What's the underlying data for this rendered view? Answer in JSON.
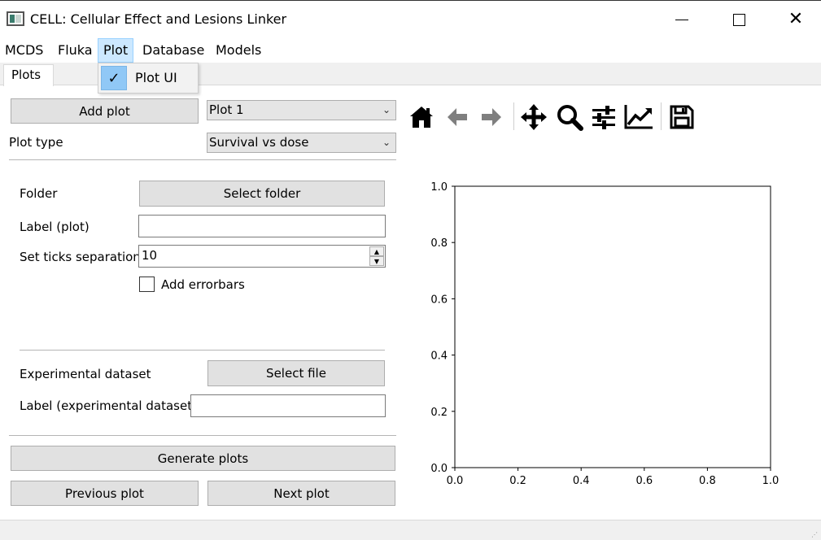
{
  "window": {
    "title": "CELL: Cellular Effect and Lesions Linker",
    "close_glyph": "✕"
  },
  "menubar": {
    "items": [
      "MCDS",
      "Fluka",
      "Plot",
      "Database",
      "Models"
    ],
    "active": "Plot"
  },
  "plot_menu": {
    "items": [
      {
        "label": "Plot UI",
        "checked": true,
        "check_glyph": "✓"
      }
    ]
  },
  "tabs": [
    "Plots"
  ],
  "form": {
    "add_plot_label": "Add plot",
    "plot_select_value": "Plot 1",
    "plot_type_label": "Plot type",
    "plot_type_value": "Survival vs dose",
    "folder_label": "Folder",
    "select_folder_label": "Select folder",
    "label_plot_label": "Label (plot)",
    "label_plot_value": "",
    "ticks_label": "Set ticks separation",
    "ticks_value": "10",
    "errorbars_label": "Add errorbars",
    "errorbars_checked": false,
    "experimental_label": "Experimental dataset",
    "select_file_label": "Select file",
    "label_exp_label": "Label (experimental dataset)",
    "label_exp_value": "",
    "generate_label": "Generate plots",
    "previous_label": "Previous plot",
    "next_label": "Next plot"
  },
  "toolbar": {
    "icons": [
      "home-icon",
      "back-icon",
      "forward-icon",
      "pan-icon",
      "zoom-icon",
      "configure-subplots-icon",
      "edit-axis-icon",
      "save-icon"
    ]
  },
  "chart_data": {
    "type": "line",
    "series": [],
    "xlim": [
      0.0,
      1.0
    ],
    "ylim": [
      0.0,
      1.0
    ],
    "xticks": [
      "0.0",
      "0.2",
      "0.4",
      "0.6",
      "0.8",
      "1.0"
    ],
    "yticks": [
      "0.0",
      "0.2",
      "0.4",
      "0.6",
      "0.8",
      "1.0"
    ],
    "grid": false
  },
  "colors": {
    "menu_active_bg": "#cce8ff",
    "check_bg": "#90c8f6",
    "button_bg": "#e1e1e1",
    "icon": "#000000",
    "icon_disabled": "#7f7f7f"
  }
}
